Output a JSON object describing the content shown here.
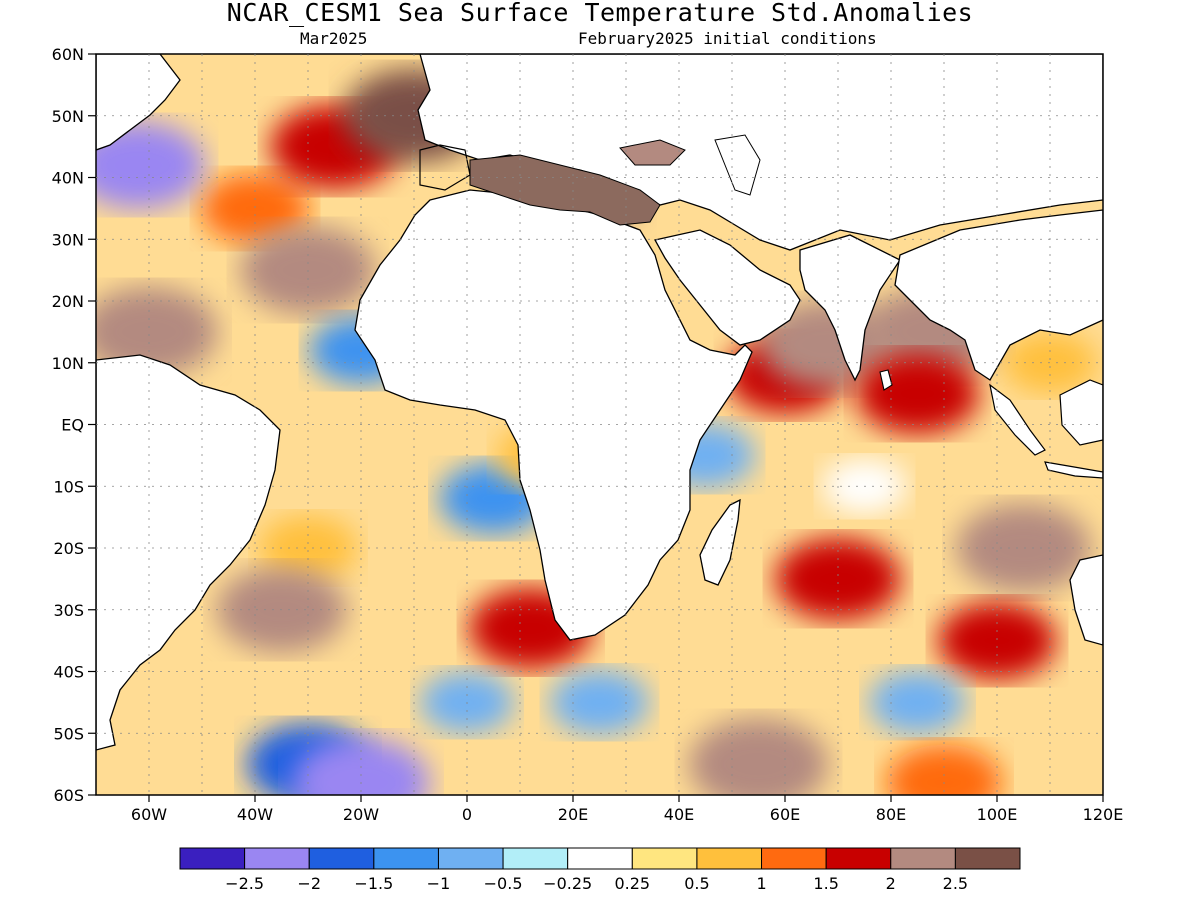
{
  "header": {
    "title": "NCAR_CESM1 Sea Surface Temperature Std.Anomalies",
    "valid_month": "Mar2025",
    "init": "February2025 initial conditions"
  },
  "map": {
    "lon_range": [
      -70,
      120
    ],
    "lat_range": [
      -60,
      60
    ],
    "gridlines": true,
    "lat_labels": [
      "60N",
      "50N",
      "40N",
      "30N",
      "20N",
      "10N",
      "EQ",
      "10S",
      "20S",
      "30S",
      "40S",
      "50S",
      "60S"
    ],
    "lon_labels": [
      "60W",
      "40W",
      "20W",
      "0",
      "20E",
      "40E",
      "60E",
      "80E",
      "100E",
      "120E"
    ]
  },
  "colorbar": {
    "colors": [
      "#3a1fbf",
      "#9a86f2",
      "#1f5fe0",
      "#3c93f0",
      "#6fb0f2",
      "#b2eef8",
      "#ffffff",
      "#ffe680",
      "#ffc03c",
      "#ff6a10",
      "#c80000",
      "#b38a80",
      "#7a5046"
    ],
    "labels": [
      "−2.5",
      "−2",
      "−1.5",
      "−1",
      "−0.5",
      "−0.25",
      "0.25",
      "0.5",
      "1",
      "1.5",
      "2",
      "2.5"
    ]
  },
  "chart_data": {
    "type": "heatmap",
    "title": "NCAR_CESM1 Sea Surface Temperature Std.Anomalies",
    "subtitle": "Mar2025 / February2025 initial conditions",
    "x_range": [
      -70,
      120
    ],
    "y_range": [
      -60,
      60
    ],
    "levels": [
      -2.5,
      -2,
      -1.5,
      -1,
      -0.5,
      -0.25,
      0.25,
      0.5,
      1,
      1.5,
      2,
      2.5
    ],
    "patches": [
      {
        "lon": -40,
        "lat": 35,
        "value": 1.2
      },
      {
        "lon": -25,
        "lat": 45,
        "value": 2.0
      },
      {
        "lon": -30,
        "lat": 25,
        "value": 2.3
      },
      {
        "lon": -10,
        "lat": 50,
        "value": 2.6
      },
      {
        "lon": -62,
        "lat": 42,
        "value": -2.2
      },
      {
        "lon": -60,
        "lat": 15,
        "value": 2.4
      },
      {
        "lon": -20,
        "lat": 12,
        "value": -1.0
      },
      {
        "lon": 5,
        "lat": -12,
        "value": -1.2
      },
      {
        "lon": 15,
        "lat": -5,
        "value": 0.8
      },
      {
        "lon": -30,
        "lat": -20,
        "value": 0.8
      },
      {
        "lon": -35,
        "lat": -30,
        "value": 2.1
      },
      {
        "lon": 12,
        "lat": -33,
        "value": 1.8
      },
      {
        "lon": -30,
        "lat": -55,
        "value": -1.8
      },
      {
        "lon": -20,
        "lat": -58,
        "value": -2.4
      },
      {
        "lon": 0,
        "lat": -45,
        "value": -0.6
      },
      {
        "lon": 25,
        "lat": -45,
        "value": -0.8
      },
      {
        "lon": 45,
        "lat": -5,
        "value": -0.8
      },
      {
        "lon": 60,
        "lat": 8,
        "value": 1.6
      },
      {
        "lon": 68,
        "lat": 13,
        "value": 2.3
      },
      {
        "lon": 88,
        "lat": 15,
        "value": 2.4
      },
      {
        "lon": 85,
        "lat": 5,
        "value": 1.8
      },
      {
        "lon": 70,
        "lat": -25,
        "value": 1.9
      },
      {
        "lon": 105,
        "lat": -20,
        "value": 2.3
      },
      {
        "lon": 100,
        "lat": -35,
        "value": 1.6
      },
      {
        "lon": 85,
        "lat": -45,
        "value": -0.7
      },
      {
        "lon": 55,
        "lat": -55,
        "value": 2.5
      },
      {
        "lon": 90,
        "lat": -58,
        "value": 1.5
      },
      {
        "lon": 75,
        "lat": -10,
        "value": 0.2
      },
      {
        "lon": 20,
        "lat": 38,
        "value": 2.5
      },
      {
        "lon": 55,
        "lat": 40,
        "value": -0.3
      },
      {
        "lon": 110,
        "lat": 10,
        "value": 0.6
      }
    ]
  }
}
